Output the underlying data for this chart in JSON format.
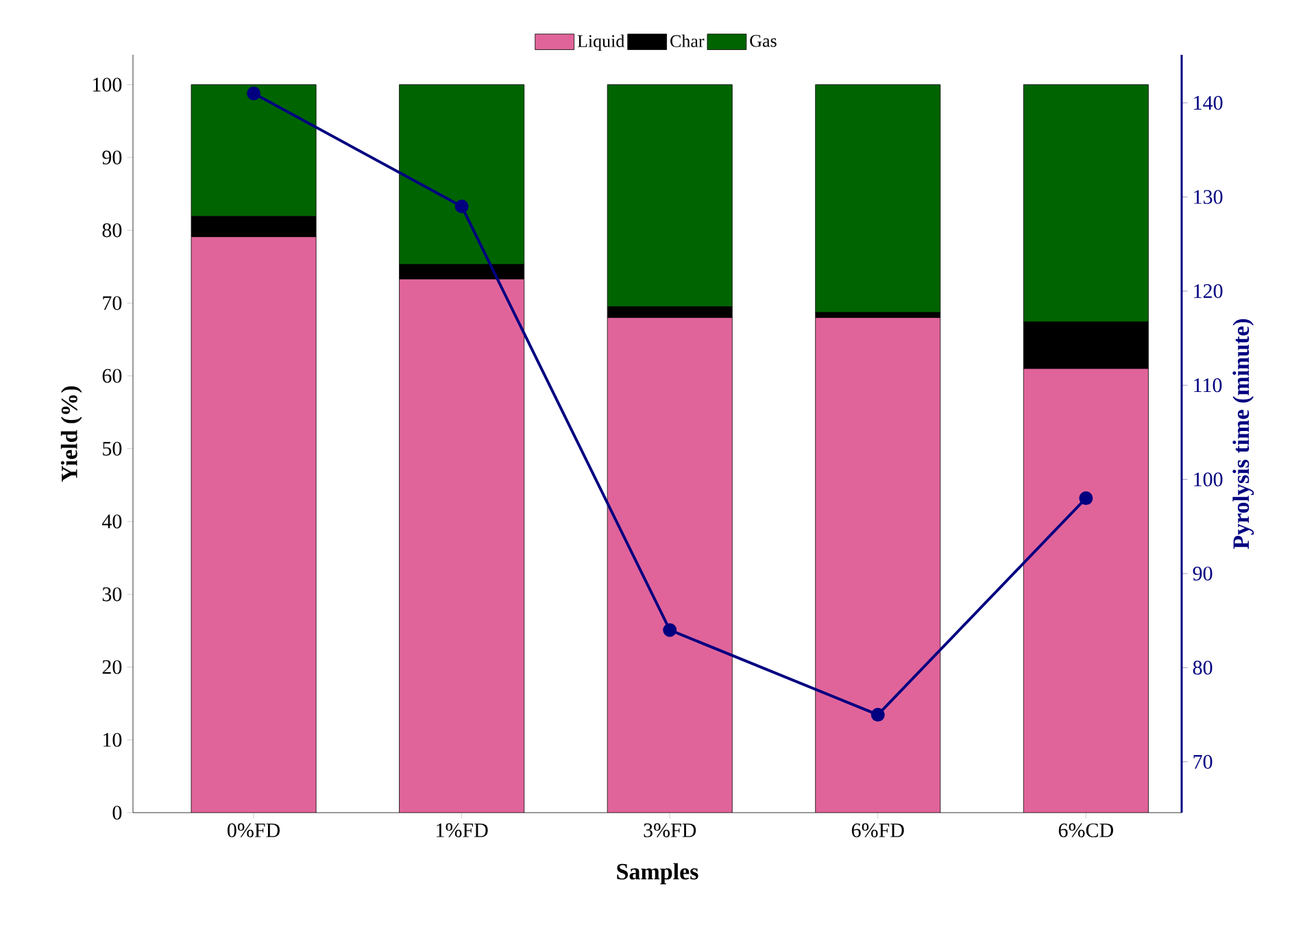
{
  "chart_data": {
    "type": "bar",
    "stacked": true,
    "xlabel": "Samples",
    "ylabel": "Yield (%)",
    "y2label": "Pyrolysis time (minute)",
    "categories": [
      "0%FD",
      "1%FD",
      "3%FD",
      "6%FD",
      "6%CD"
    ],
    "series": [
      {
        "name": "Liquid",
        "color": "#e0649a",
        "values": [
          79.1,
          73.3,
          68.0,
          68.0,
          61.0
        ]
      },
      {
        "name": "Char",
        "color": "#000000",
        "values": [
          2.8,
          2.0,
          1.5,
          0.7,
          6.4
        ]
      },
      {
        "name": "Gas",
        "color": "#006400",
        "values": [
          18.1,
          24.7,
          30.5,
          31.3,
          32.6
        ]
      },
      {
        "type": "line",
        "axis": "y2",
        "color": "#000080",
        "values": [
          141,
          129,
          84,
          75,
          98
        ]
      }
    ],
    "ylim": [
      0,
      104.1
    ],
    "yticks": [
      0,
      10,
      20,
      30,
      40,
      50,
      60,
      70,
      80,
      90,
      100
    ],
    "y2lim": [
      64.6,
      145.1
    ],
    "y2ticks": [
      70,
      80,
      90,
      100,
      110,
      120,
      130,
      140
    ],
    "marker": "circle",
    "legend": "top"
  }
}
